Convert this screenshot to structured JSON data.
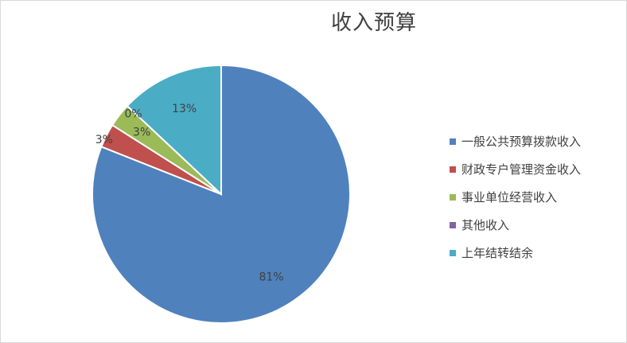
{
  "chart_data": {
    "type": "pie",
    "title": "收入预算",
    "categories": [
      "一般公共预算拨款收入",
      "财政专户管理资金收入",
      "事业单位经营收入",
      "其他收入",
      "上年结转结余"
    ],
    "values": [
      81,
      3,
      3,
      0,
      13
    ],
    "data_labels": [
      "81%",
      "3%",
      "3%",
      "0%",
      "13%"
    ],
    "colors": [
      "#4f81bd",
      "#c0504d",
      "#9bbb59",
      "#8064a2",
      "#4bacc6"
    ],
    "legend": "right",
    "start_angle_deg": 0,
    "direction": "clockwise"
  }
}
